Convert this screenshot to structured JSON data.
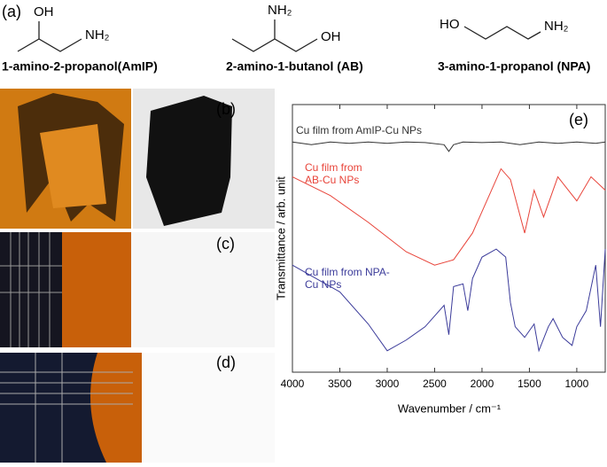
{
  "panel_labels": [
    "(a)",
    "(b)",
    "(c)",
    "(d)",
    "(e)"
  ],
  "molecules": [
    {
      "name": "1-amino-2-propanol(AmIP)",
      "groups": [
        "OH",
        "NH₂"
      ]
    },
    {
      "name": "2-amino-1-butanol  (AB)",
      "groups": [
        "NH₂",
        "OH"
      ]
    },
    {
      "name": "3-amino-1-propanol (NPA)",
      "groups": [
        "HO",
        "NH₂"
      ]
    }
  ],
  "chart_data": {
    "type": "line",
    "xlabel": "Wavenumber / cm⁻¹",
    "ylabel": "Transmittance / arb. unit",
    "xlim": [
      4000,
      700
    ],
    "ylim": [
      0,
      100
    ],
    "xticks": [
      4000,
      3500,
      3000,
      2500,
      2000,
      1500,
      1000
    ],
    "series": [
      {
        "name": "Cu film from AmIP-Cu NPs",
        "color": "#333333",
        "x": [
          4000,
          3800,
          3600,
          3400,
          3200,
          3000,
          2800,
          2600,
          2400,
          2350,
          2300,
          2200,
          2000,
          1800,
          1600,
          1400,
          1200,
          1000,
          800,
          700
        ],
        "values": [
          86,
          85,
          86,
          85.5,
          86,
          85.5,
          86,
          85.8,
          85,
          82.5,
          85,
          86,
          85.8,
          86,
          85,
          86,
          85.5,
          86,
          85.5,
          86
        ]
      },
      {
        "name": "Cu film from AB-Cu NPs",
        "color": "#e8443a",
        "x": [
          4000,
          3600,
          3200,
          2800,
          2500,
          2300,
          2100,
          1900,
          1800,
          1700,
          1550,
          1450,
          1350,
          1200,
          1000,
          850,
          700
        ],
        "values": [
          73,
          66,
          56,
          45,
          40,
          42,
          52,
          68,
          76,
          72,
          52,
          68,
          58,
          73,
          64,
          73,
          68
        ]
      },
      {
        "name": "Cu film from NPA-Cu NPs",
        "color": "#3b3b9a",
        "x": [
          4000,
          3800,
          3500,
          3200,
          3000,
          2800,
          2600,
          2400,
          2350,
          2300,
          2200,
          2150,
          2100,
          2000,
          1850,
          1750,
          1700,
          1650,
          1550,
          1450,
          1400,
          1300,
          1250,
          1150,
          1050,
          1000,
          900,
          800,
          750,
          700
        ],
        "values": [
          40,
          36,
          30,
          18,
          8,
          12,
          17,
          25,
          14,
          32,
          33,
          23,
          35,
          43,
          46,
          43,
          26,
          17,
          13,
          18,
          8,
          17,
          20,
          13,
          10,
          17,
          23,
          40,
          17,
          46
        ]
      }
    ]
  }
}
